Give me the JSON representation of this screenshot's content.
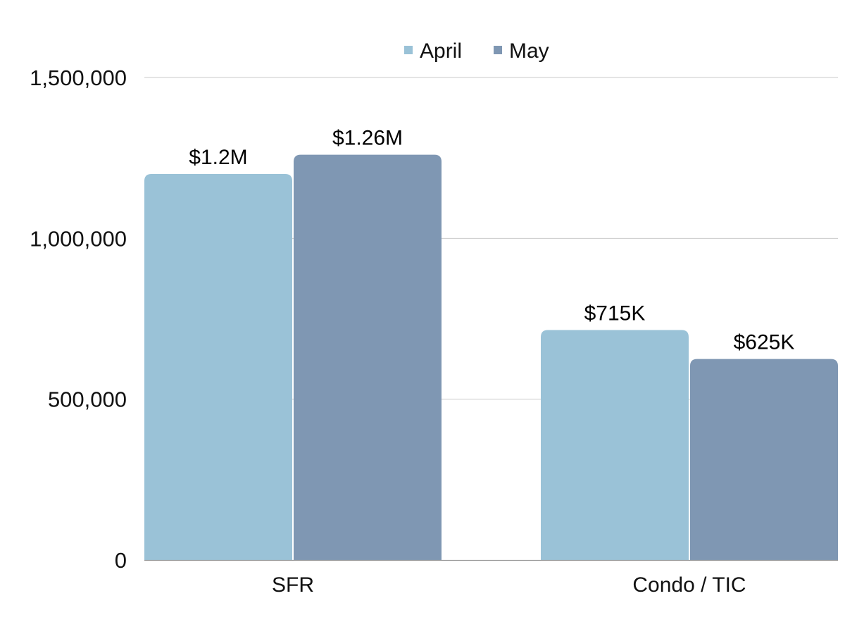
{
  "chart_data": {
    "type": "bar",
    "title": "",
    "xlabel": "",
    "ylabel": "",
    "categories": [
      "SFR",
      "Condo / TIC"
    ],
    "series": [
      {
        "name": "April",
        "values": [
          1200000,
          715000
        ],
        "labels": [
          "$1.2M",
          "$715K"
        ],
        "color": "#9ac2d7"
      },
      {
        "name": "May",
        "values": [
          1260000,
          625000
        ],
        "labels": [
          "$1.26M",
          "$625K"
        ],
        "color": "#7f97b3"
      }
    ],
    "ylim": [
      0,
      1500000
    ],
    "yticks": [
      0,
      500000,
      1000000,
      1500000
    ],
    "ytick_labels": [
      "0",
      "500,000",
      "1,000,000",
      "1,500,000"
    ],
    "grid": true,
    "legend_position": "top-center"
  }
}
